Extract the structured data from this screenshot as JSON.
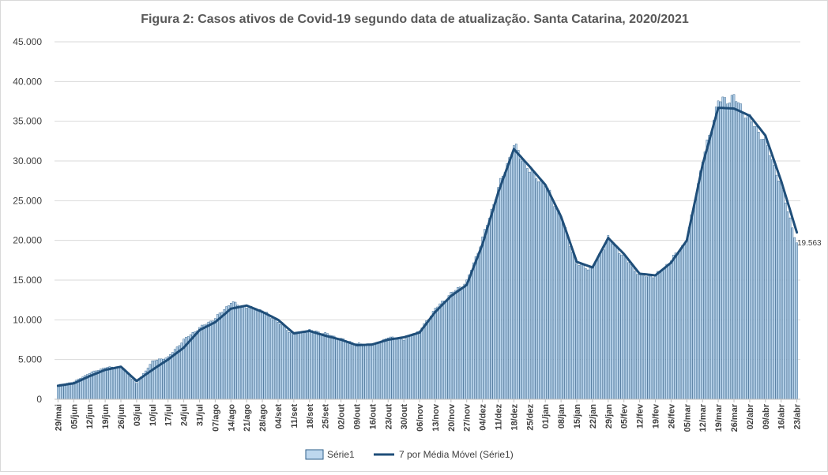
{
  "chart_data": {
    "type": "bar",
    "title": "Figura 2: Casos ativos de Covid-19 segundo data de atualização. Santa Catarina, 2020/2021",
    "xlabel": "",
    "ylabel": "",
    "ylim": [
      0,
      45000
    ],
    "yticks": [
      0,
      5000,
      10000,
      15000,
      20000,
      25000,
      30000,
      35000,
      40000,
      45000
    ],
    "ytick_labels": [
      "0",
      "5.000",
      "10.000",
      "15.000",
      "20.000",
      "25.000",
      "30.000",
      "35.000",
      "40.000",
      "45.000"
    ],
    "grid": true,
    "legend_position": "bottom",
    "start_date": "2020-05-29",
    "x_tick_labels": [
      "29/mai",
      "05/jun",
      "12/jun",
      "19/jun",
      "26/jun",
      "03/jul",
      "10/jul",
      "17/jul",
      "24/jul",
      "31/jul",
      "07/ago",
      "14/ago",
      "21/ago",
      "28/ago",
      "04/set",
      "11/set",
      "18/set",
      "25/set",
      "02/out",
      "09/out",
      "16/out",
      "23/out",
      "30/out",
      "06/nov",
      "13/nov",
      "20/nov",
      "27/nov",
      "04/dez",
      "11/dez",
      "18/dez",
      "25/dez",
      "01/jan",
      "08/jan",
      "15/jan",
      "22/jan",
      "29/jan",
      "05/fev",
      "12/fev",
      "19/fev",
      "26/fev",
      "05/mar",
      "12/mar",
      "19/mar",
      "26/mar",
      "02/abr",
      "09/abr",
      "16/abr",
      "23/abr"
    ],
    "weekly_values": [
      1800,
      2200,
      3300,
      4000,
      4100,
      2000,
      4800,
      5300,
      7500,
      9000,
      10200,
      12200,
      11600,
      11200,
      9700,
      8100,
      8700,
      8300,
      7600,
      7000,
      6800,
      7800,
      7500,
      8600,
      11400,
      13300,
      14800,
      20200,
      26500,
      32000,
      28800,
      27000,
      23000,
      17000,
      16400,
      20300,
      18000,
      15600,
      15500,
      17500,
      20000,
      30000,
      37500,
      38000,
      35300,
      32500,
      27000,
      19563
    ],
    "moving_average_weekly": [
      1700,
      2000,
      2900,
      3700,
      4100,
      2300,
      3700,
      5000,
      6500,
      8700,
      9700,
      11400,
      11800,
      11000,
      10000,
      8300,
      8600,
      8000,
      7500,
      6800,
      6900,
      7500,
      7800,
      8400,
      11000,
      13000,
      14400,
      19500,
      26000,
      31500,
      29300,
      27000,
      23000,
      17300,
      16600,
      20300,
      18300,
      15800,
      15600,
      17200,
      20000,
      29500,
      36700,
      36600,
      35700,
      33200,
      27500,
      21000
    ],
    "series": [
      {
        "name": "Série1",
        "type": "bar",
        "color": "#bdd7ee",
        "edge": "#2e5f8a"
      },
      {
        "name": "7 por Média Móvel (Série1)",
        "type": "line",
        "color": "#1f4e79"
      }
    ],
    "annotations": [
      {
        "text": "19.563",
        "point": "last"
      }
    ]
  }
}
